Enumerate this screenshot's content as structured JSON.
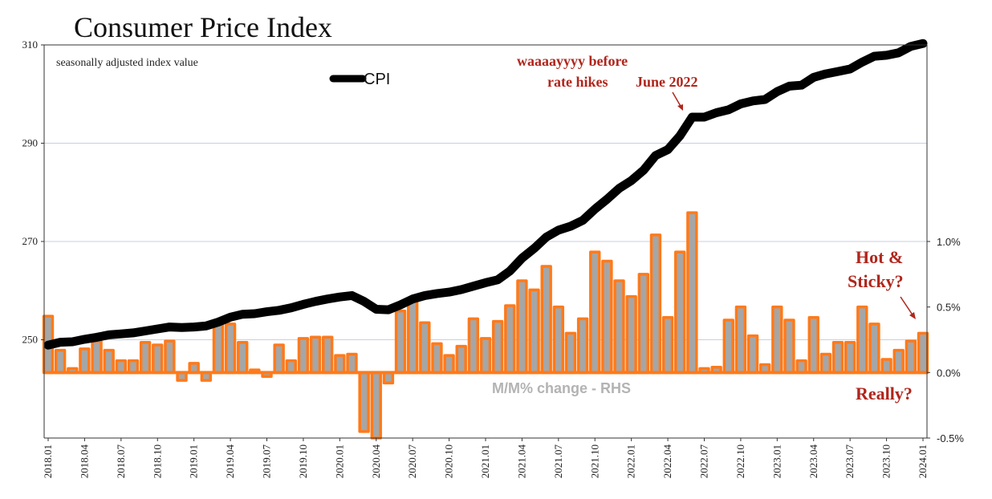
{
  "chart_data": {
    "type": "line+bar",
    "title": "Consumer Price Index",
    "note": "seasonally adjusted index value",
    "left_axis": {
      "min": 230,
      "max": 310,
      "ticks": [
        "250",
        "270",
        "290",
        "310"
      ]
    },
    "right_axis": {
      "min": -0.5,
      "max": 2.5,
      "ticks": [
        "-0.5%",
        "0.0%",
        "0.5%",
        "1.0%"
      ],
      "tick_values": [
        -0.5,
        0,
        0.5,
        1.0
      ]
    },
    "x_tick_labels": [
      "2018.01",
      "2018.04",
      "2018.07",
      "2018.10",
      "2019.01",
      "2019.04",
      "2019.07",
      "2019.10",
      "2020.01",
      "2020.04",
      "2020.07",
      "2020.10",
      "2021.01",
      "2021.04",
      "2021.07",
      "2021.10",
      "2022.01",
      "2022.04",
      "2022.07",
      "2022.10",
      "2023.01",
      "2023.04",
      "2023.07",
      "2023.10",
      "2024.01"
    ],
    "series": [
      {
        "name": "CPI",
        "type": "line",
        "axis": "left",
        "color": "#000000",
        "values": [
          248.9,
          249.5,
          249.6,
          250.1,
          250.5,
          251.0,
          251.2,
          251.4,
          251.8,
          252.2,
          252.6,
          252.5,
          252.6,
          252.8,
          253.6,
          254.6,
          255.2,
          255.3,
          255.7,
          256.0,
          256.5,
          257.2,
          257.8,
          258.3,
          258.7,
          259.0,
          257.8,
          256.2,
          256.1,
          257.1,
          258.3,
          259.0,
          259.4,
          259.7,
          260.2,
          260.9,
          261.6,
          262.2,
          264.0,
          266.6,
          268.6,
          270.9,
          272.3,
          273.1,
          274.3,
          276.6,
          278.6,
          280.8,
          282.4,
          284.5,
          287.5,
          288.7,
          291.5,
          295.3,
          295.3,
          296.2,
          296.8,
          298.0,
          298.6,
          298.9,
          300.5,
          301.6,
          301.8,
          303.4,
          304.1,
          304.6,
          305.1,
          306.5,
          307.7,
          307.9,
          308.4,
          309.7,
          310.3
        ]
      },
      {
        "name": "M/M% change - RHS",
        "type": "bar",
        "axis": "right",
        "color": "#a6a6a6",
        "edge_color": "#ff7a1a",
        "values": [
          0.43,
          0.17,
          0.03,
          0.18,
          0.24,
          0.17,
          0.09,
          0.09,
          0.23,
          0.21,
          0.24,
          -0.06,
          0.07,
          -0.06,
          0.38,
          0.37,
          0.23,
          0.02,
          -0.03,
          0.21,
          0.09,
          0.26,
          0.27,
          0.27,
          0.13,
          0.14,
          -0.45,
          -0.7,
          -0.08,
          0.47,
          0.55,
          0.38,
          0.22,
          0.13,
          0.2,
          0.41,
          0.26,
          0.39,
          0.51,
          0.7,
          0.63,
          0.81,
          0.5,
          0.3,
          0.41,
          0.92,
          0.85,
          0.7,
          0.58,
          0.75,
          1.05,
          0.42,
          0.92,
          1.22,
          0.03,
          0.04,
          0.4,
          0.5,
          0.28,
          0.06,
          0.5,
          0.4,
          0.09,
          0.42,
          0.14,
          0.23,
          0.23,
          0.5,
          0.37,
          0.1,
          0.17,
          0.24,
          0.3
        ]
      }
    ],
    "annotations": {
      "before_line1": "waaaayyyy before",
      "before_line2": "rate hikes",
      "june": "June 2022",
      "hot1": "Hot &",
      "hot2": "Sticky?",
      "really": "Really?",
      "rhs_label": "M/M% change - RHS",
      "legend_cpi": "CPI"
    }
  }
}
